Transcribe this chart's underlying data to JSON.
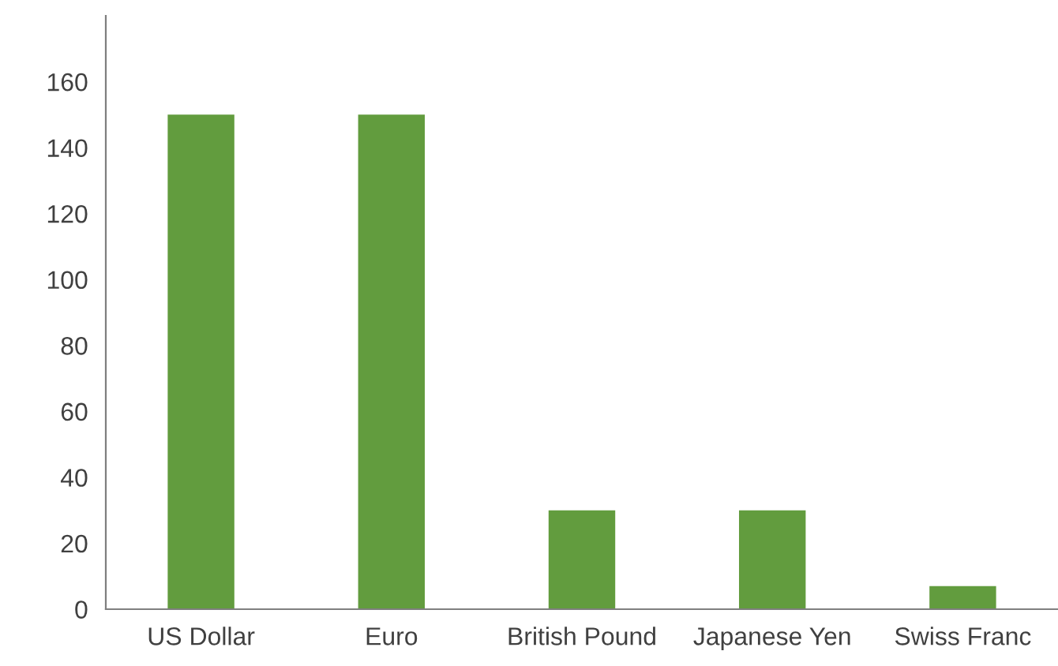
{
  "chart_data": {
    "type": "bar",
    "categories": [
      "US Dollar",
      "Euro",
      "British Pound",
      "Japanese Yen",
      "Swiss Franc"
    ],
    "values": [
      150,
      150,
      30,
      30,
      7
    ],
    "color": "#629c3e",
    "ylim": [
      0,
      180
    ],
    "yticks": [
      0,
      20,
      40,
      60,
      80,
      100,
      120,
      140,
      160
    ],
    "grid": false,
    "legend": false
  }
}
